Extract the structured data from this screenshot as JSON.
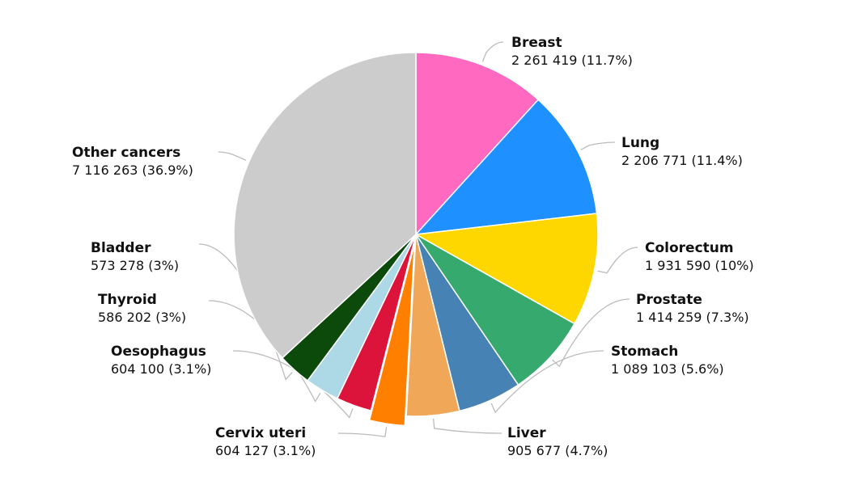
{
  "chart_data": {
    "type": "pie",
    "start_angle": "top, clockwise",
    "slices": [
      {
        "name": "Breast",
        "value": 2261419,
        "value_label": "2 261 419",
        "percent_label": "(11.7%)",
        "percent": 11.7,
        "color": "#FF69C0"
      },
      {
        "name": "Lung",
        "value": 2206771,
        "value_label": "2 206 771",
        "percent_label": "(11.4%)",
        "percent": 11.4,
        "color": "#1E90FF"
      },
      {
        "name": "Colorectum",
        "value": 1931590,
        "value_label": "1 931 590",
        "percent_label": "(10%)",
        "percent": 10,
        "color": "#FFD700"
      },
      {
        "name": "Prostate",
        "value": 1414259,
        "value_label": "1 414 259",
        "percent_label": "(7.3%)",
        "percent": 7.3,
        "color": "#36A96E"
      },
      {
        "name": "Stomach",
        "value": 1089103,
        "value_label": "1 089 103",
        "percent_label": "(5.6%)",
        "percent": 5.6,
        "color": "#4682B4"
      },
      {
        "name": "Liver",
        "value": 905677,
        "value_label": "905 677",
        "percent_label": "(4.7%)",
        "percent": 4.7,
        "color": "#F0A858"
      },
      {
        "name": "Cervix uteri",
        "value": 604127,
        "value_label": "604 127",
        "percent_label": "(3.1%)",
        "percent": 3.1,
        "color": "#FF7F00",
        "exploded": true
      },
      {
        "name": "Oesophagus",
        "value": 604100,
        "value_label": "604 100",
        "percent_label": "(3.1%)",
        "percent": 3.1,
        "color": "#DC143C"
      },
      {
        "name": "Thyroid",
        "value": 586202,
        "value_label": "586 202",
        "percent_label": "(3%)",
        "percent": 3,
        "color": "#ADD8E6"
      },
      {
        "name": "Bladder",
        "value": 573278,
        "value_label": "573 278",
        "percent_label": "(3%)",
        "percent": 3,
        "color": "#0B4A0B"
      },
      {
        "name": "Other cancers",
        "value": 7116263,
        "value_label": "7 116 263",
        "percent_label": "(36.9%)",
        "percent": 36.9,
        "color": "#CCCCCC"
      }
    ]
  }
}
